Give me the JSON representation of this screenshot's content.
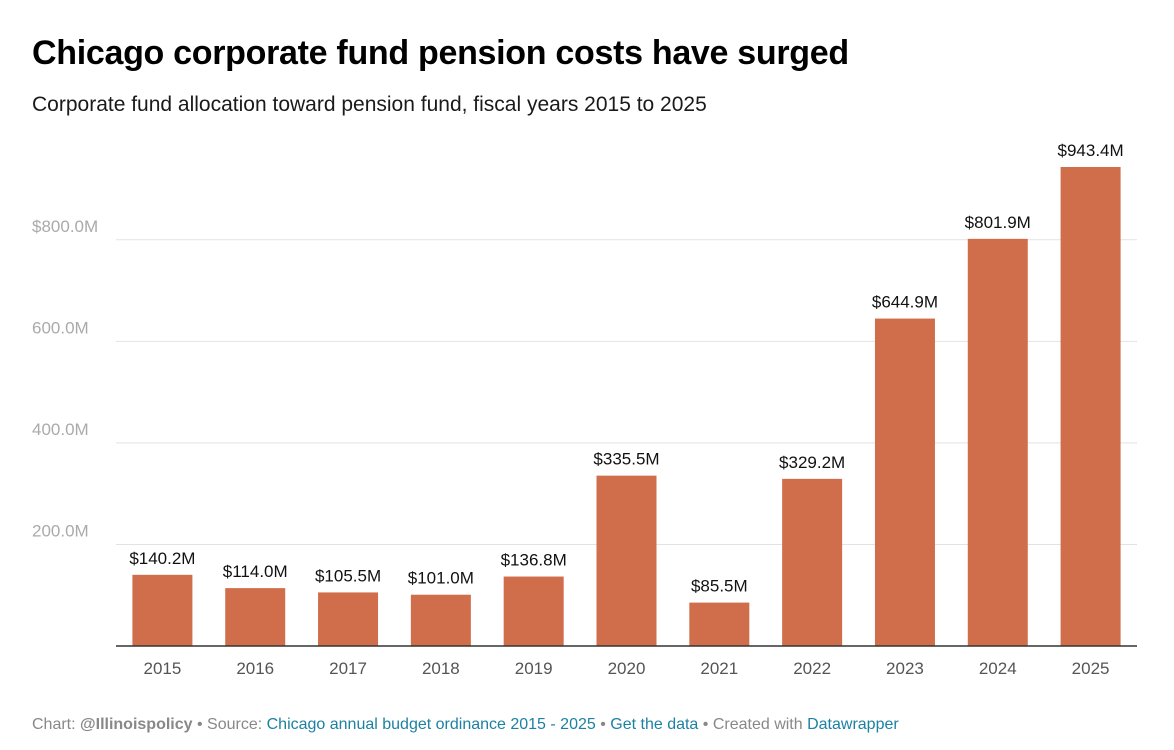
{
  "title": "Chicago corporate fund pension costs have surged",
  "subtitle": "Corporate fund allocation toward pension fund, fiscal years 2015 to 2025",
  "footer": {
    "chart_label": "Chart: ",
    "chart_by": "@Illinoispolicy",
    "source_label": " • Source: ",
    "source_link": "Chicago annual budget ordinance 2015 - 2025",
    "sep": " • ",
    "get_data": "Get the data",
    "created_with": " • Created with ",
    "tool": "Datawrapper"
  },
  "colors": {
    "bar": "#d06e4b",
    "grid": "#e2e2e2",
    "axis_label": "#aaaaaa",
    "tick": "#555555",
    "value_label": "#111111",
    "link": "#1d81a2"
  },
  "chart_data": {
    "type": "bar",
    "categories": [
      "2015",
      "2016",
      "2017",
      "2018",
      "2019",
      "2020",
      "2021",
      "2022",
      "2023",
      "2024",
      "2025"
    ],
    "values": [
      140.2,
      114.0,
      105.5,
      101.0,
      136.8,
      335.5,
      85.5,
      329.2,
      644.9,
      801.9,
      943.4
    ],
    "value_labels": [
      "$140.2M",
      "$114.0M",
      "$105.5M",
      "$101.0M",
      "$136.8M",
      "$335.5M",
      "$85.5M",
      "$329.2M",
      "$644.9M",
      "$801.9M",
      "$943.4M"
    ],
    "y_ticks": [
      200,
      400,
      600,
      800
    ],
    "y_tick_labels": [
      "200.0M",
      "400.0M",
      "600.0M",
      "$800.0M"
    ],
    "ylim": [
      0,
      943.4
    ],
    "unit": "millions of dollars",
    "grid": true,
    "title": "Chicago corporate fund pension costs have surged",
    "xlabel": "",
    "ylabel": ""
  }
}
